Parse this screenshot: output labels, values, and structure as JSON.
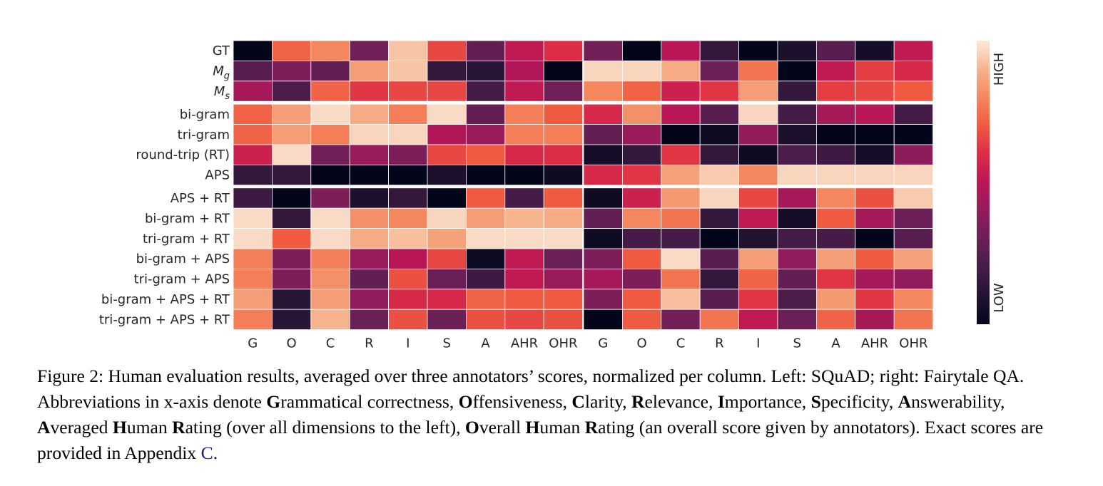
{
  "chart_data": {
    "type": "heatmap",
    "subtitle_note": "",
    "rows": [
      "GT",
      "M_g",
      "M_s",
      "bi-gram",
      "tri-gram",
      "round-trip (RT)",
      "APS",
      "APS + RT",
      "bi-gram + RT",
      "tri-gram + RT",
      "bi-gram + APS",
      "tri-gram + APS",
      "bi-gram + APS + RT",
      "tri-gram + APS + RT"
    ],
    "row_display": [
      {
        "base": "GT",
        "sub": ""
      },
      {
        "base": "M",
        "sub": "g"
      },
      {
        "base": "M",
        "sub": "s"
      },
      {
        "base": "bi-gram",
        "sub": ""
      },
      {
        "base": "tri-gram",
        "sub": ""
      },
      {
        "base": "round-trip (RT)",
        "sub": ""
      },
      {
        "base": "APS",
        "sub": ""
      },
      {
        "base": "APS + RT",
        "sub": ""
      },
      {
        "base": "bi-gram + RT",
        "sub": ""
      },
      {
        "base": "tri-gram + RT",
        "sub": ""
      },
      {
        "base": "bi-gram + APS",
        "sub": ""
      },
      {
        "base": "tri-gram + APS",
        "sub": ""
      },
      {
        "base": "bi-gram + APS + RT",
        "sub": ""
      },
      {
        "base": "tri-gram + APS + RT",
        "sub": ""
      }
    ],
    "row_groups": [
      [
        0,
        2
      ],
      [
        3,
        6
      ],
      [
        7,
        13
      ]
    ],
    "columns": [
      "G",
      "O",
      "C",
      "R",
      "I",
      "S",
      "A",
      "AHR",
      "OHR"
    ],
    "colorbar": {
      "high_label": "HIGH",
      "low_label": "LOW",
      "range": [
        0,
        1
      ]
    },
    "panels": [
      {
        "id": "left",
        "values": [
          [
            0.0,
            0.72,
            0.8,
            0.32,
            0.93,
            0.66,
            0.28,
            0.52,
            0.6
          ],
          [
            0.25,
            0.35,
            0.28,
            0.85,
            0.93,
            0.15,
            0.12,
            0.48,
            0.0
          ],
          [
            0.45,
            0.22,
            0.72,
            0.62,
            0.66,
            0.66,
            0.2,
            0.52,
            0.32
          ],
          [
            0.72,
            0.85,
            0.97,
            0.88,
            0.78,
            0.97,
            0.28,
            0.78,
            0.7
          ],
          [
            0.72,
            0.85,
            0.78,
            0.96,
            0.96,
            0.48,
            0.42,
            0.78,
            0.78
          ],
          [
            0.55,
            0.97,
            0.32,
            0.42,
            0.35,
            0.66,
            0.7,
            0.58,
            0.6
          ],
          [
            0.15,
            0.15,
            0.0,
            0.0,
            0.0,
            0.08,
            0.0,
            0.0,
            0.04
          ],
          [
            0.18,
            0.0,
            0.35,
            0.08,
            0.15,
            0.0,
            0.7,
            0.2,
            0.7
          ],
          [
            0.97,
            0.15,
            0.97,
            0.82,
            0.8,
            0.96,
            0.85,
            0.9,
            0.88
          ],
          [
            0.97,
            0.7,
            0.97,
            0.88,
            0.92,
            0.86,
            0.97,
            0.97,
            0.97
          ],
          [
            0.78,
            0.35,
            0.78,
            0.42,
            0.5,
            0.66,
            0.04,
            0.52,
            0.3
          ],
          [
            0.78,
            0.35,
            0.82,
            0.28,
            0.68,
            0.3,
            0.18,
            0.52,
            0.42
          ],
          [
            0.85,
            0.12,
            0.85,
            0.4,
            0.58,
            0.58,
            0.72,
            0.7,
            0.7
          ],
          [
            0.78,
            0.12,
            0.9,
            0.3,
            0.68,
            0.3,
            0.68,
            0.66,
            0.68
          ]
        ]
      },
      {
        "id": "right",
        "values": [
          [
            0.32,
            0.0,
            0.5,
            0.15,
            0.0,
            0.08,
            0.25,
            0.06,
            0.52
          ],
          [
            0.96,
            0.96,
            0.88,
            0.3,
            0.76,
            0.0,
            0.52,
            0.64,
            0.58
          ],
          [
            0.8,
            0.72,
            0.55,
            0.62,
            0.85,
            0.15,
            0.64,
            0.66,
            0.7
          ],
          [
            0.58,
            0.82,
            0.5,
            0.25,
            0.96,
            0.2,
            0.45,
            0.5,
            0.2
          ],
          [
            0.28,
            0.42,
            0.0,
            0.04,
            0.4,
            0.08,
            0.0,
            0.0,
            0.0
          ],
          [
            0.06,
            0.15,
            0.62,
            0.15,
            0.04,
            0.22,
            0.18,
            0.06,
            0.38
          ],
          [
            0.58,
            0.62,
            0.86,
            0.94,
            0.8,
            0.96,
            0.96,
            0.96,
            0.96
          ],
          [
            0.04,
            0.55,
            0.84,
            0.96,
            0.66,
            0.45,
            0.8,
            0.68,
            0.94
          ],
          [
            0.28,
            0.8,
            0.76,
            0.15,
            0.52,
            0.06,
            0.7,
            0.45,
            0.3
          ],
          [
            0.04,
            0.2,
            0.2,
            0.0,
            0.1,
            0.2,
            0.2,
            0.0,
            0.25
          ],
          [
            0.35,
            0.7,
            0.97,
            0.25,
            0.85,
            0.4,
            0.85,
            0.7,
            0.86
          ],
          [
            0.45,
            0.35,
            0.76,
            0.15,
            0.72,
            0.28,
            0.62,
            0.45,
            0.4
          ],
          [
            0.35,
            0.7,
            0.92,
            0.25,
            0.62,
            0.22,
            0.84,
            0.62,
            0.8
          ],
          [
            0.0,
            0.7,
            0.32,
            0.76,
            0.52,
            0.3,
            0.72,
            0.45,
            0.76
          ]
        ]
      }
    ]
  },
  "caption": {
    "figure_label": "Figure 2:",
    "text_1": " Human evaluation results, averaged over three annotators’ scores, normalized per column. Left: SQuAD; right: Fairytale QA. Abbreviations in x-axis denote ",
    "segments": [
      {
        "bold": "G",
        "rest": "rammatical correctness, "
      },
      {
        "bold": "O",
        "rest": "ffensiveness, "
      },
      {
        "bold": "C",
        "rest": "larity, "
      },
      {
        "bold": "R",
        "rest": "elevance, "
      },
      {
        "bold": "I",
        "rest": "mportance, "
      },
      {
        "bold": "S",
        "rest": "pecificity, "
      },
      {
        "bold": "A",
        "rest": "nswerability, "
      },
      {
        "bold": "A",
        "rest": "veraged "
      },
      {
        "bold": "H",
        "rest": "uman "
      },
      {
        "bold": "R",
        "rest": "ating (over all dimensions to the left), "
      },
      {
        "bold": "O",
        "rest": "verall "
      },
      {
        "bold": "H",
        "rest": "uman "
      },
      {
        "bold": "R",
        "rest": "ating (an overall score given by annotators). Exact scores are provided in Appendix "
      }
    ],
    "appendix_ref": "C",
    "end": "."
  }
}
